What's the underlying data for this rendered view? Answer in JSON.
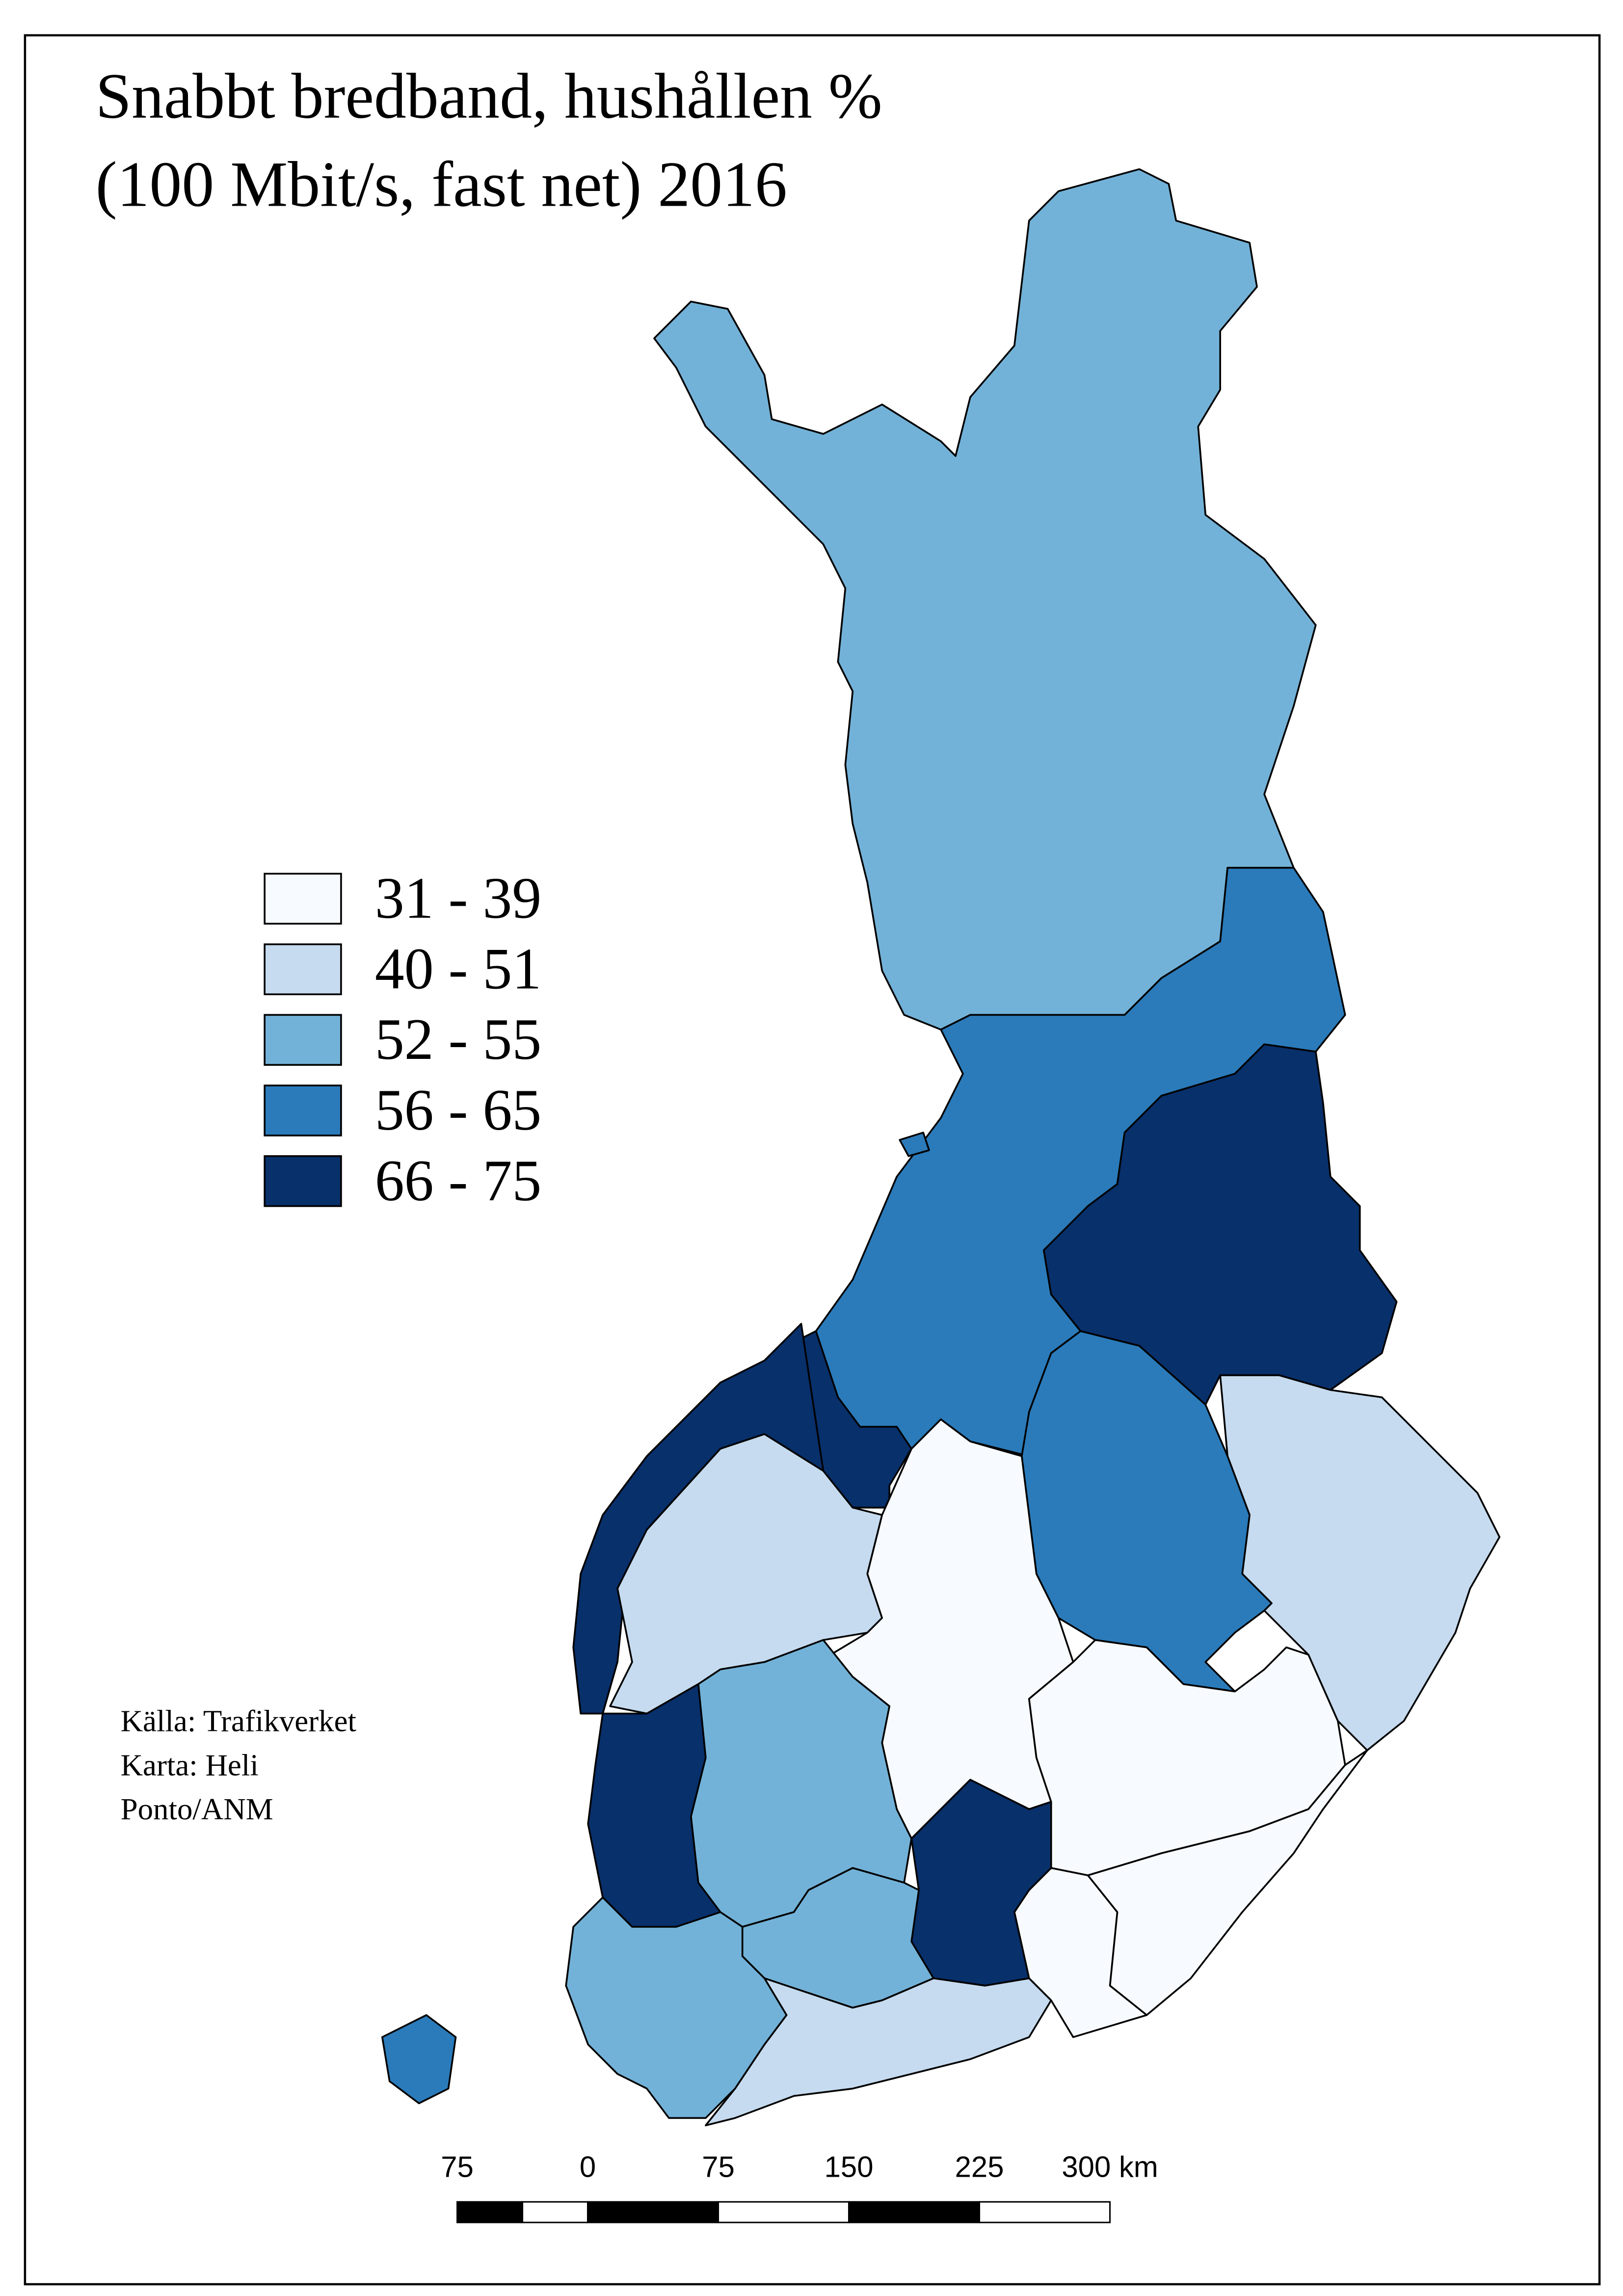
{
  "title": [
    "Snabbt bredband, hushållen %",
    "(100 Mbit/s, fast net) 2016"
  ],
  "legend": [
    {
      "label": "31 - 39",
      "color": "#f7fbff"
    },
    {
      "label": "40 - 51",
      "color": "#c6dbef"
    },
    {
      "label": "52 - 55",
      "color": "#73b2d8"
    },
    {
      "label": "56 - 65",
      "color": "#2b7bba"
    },
    {
      "label": "66 - 75",
      "color": "#08306b"
    }
  ],
  "source": [
    "Källa: Trafikverket",
    "Karta: Heli",
    "Ponto/ANM"
  ],
  "scale_bar": {
    "ticks": [
      {
        "value": -75,
        "label": "75"
      },
      0,
      75,
      150,
      225,
      {
        "value": 300,
        "label": "300 km"
      }
    ]
  }
}
